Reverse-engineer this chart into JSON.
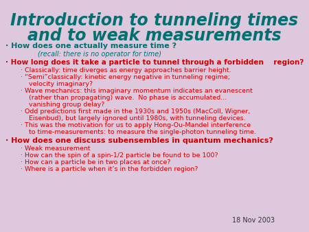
{
  "title_line1": "Introduction to tunneling times",
  "title_line2": "and to weak measurements",
  "title_color": "#007070",
  "bg_color": "#ddc8dd",
  "date": "18 Nov 2003",
  "date_color": "#333333",
  "sections": [
    {
      "bullet": "·",
      "text": "How does one actually measure time ?",
      "sub": "(recall: there is no operator for time)",
      "level": 0,
      "bold": true,
      "color": "#007070"
    },
    {
      "bullet": "·",
      "text": "How long does it take a particle to tunnel through a forbidden    region?",
      "sub": null,
      "level": 0,
      "bold": true,
      "color": "#cc0000"
    },
    {
      "bullet": "·",
      "text": "Classically: time diverges as energy approaches barrier height.",
      "sub": null,
      "level": 1,
      "bold": false,
      "color": "#cc0000"
    },
    {
      "bullet": "·",
      "text": "“Semi”classically: kinetic energy negative in tunneling regime;",
      "sub": "  velocity imaginary?",
      "level": 1,
      "bold": false,
      "color": "#cc0000"
    },
    {
      "bullet": "·",
      "text": "Wave mechanics: this imaginary momentum indicates an evanescent",
      "sub": "  (rather than propagating) wave.  No phase is accumulated...\n  vanishing group delay?",
      "level": 1,
      "bold": false,
      "color": "#cc0000"
    },
    {
      "bullet": "·",
      "text": "Odd predictions first made in the 1930s and 1950s (MacColl, Wigner,",
      "sub": "  Eisenbud), but largely ignored until 1980s, with tunneling devices.",
      "level": 1,
      "bold": false,
      "color": "#cc0000"
    },
    {
      "bullet": "·",
      "text": "This was the motivation for us to apply Hong-Ou-Mandel interference",
      "sub": "  to time-measurements: to measure the single-photon tunneling time.",
      "level": 1,
      "bold": false,
      "color": "#cc0000"
    },
    {
      "bullet": "·",
      "text": "How does one discuss subensembles in quantum mechanics?",
      "sub": null,
      "level": 0,
      "bold": true,
      "color": "#cc0000"
    },
    {
      "bullet": "·",
      "text": "Weak measurement",
      "sub": null,
      "level": 1,
      "bold": false,
      "color": "#cc0000"
    },
    {
      "bullet": "·",
      "text": "How can the spin of a spin-1/2 particle be found to be 100?",
      "sub": null,
      "level": 1,
      "bold": false,
      "color": "#cc0000"
    },
    {
      "bullet": "·",
      "text": "How can a particle be in two places at once?",
      "sub": null,
      "level": 1,
      "bold": false,
      "color": "#cc0000"
    },
    {
      "bullet": "·",
      "text": "Where is a particle when it’s in the forbidden region?",
      "sub": null,
      "level": 1,
      "bold": false,
      "color": "#cc0000"
    }
  ]
}
